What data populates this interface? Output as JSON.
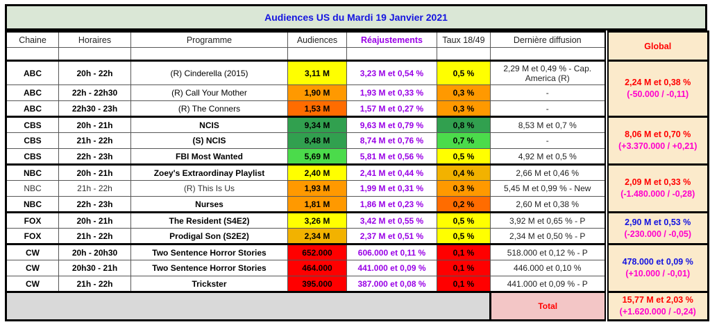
{
  "title": "Audiences US du Mardi 19 Janvier 2021",
  "columns": [
    "Chaine",
    "Horaires",
    "Programme",
    "Audiences",
    "Réajustements",
    "Taux 18/49",
    "Dernière diffusion",
    "Global"
  ],
  "palette": {
    "title_bg": "#DAE7D6",
    "title_text": "#1414E0",
    "cream": "#FBEACB",
    "pink": "#F3C6C6",
    "grey": "#D9D9D9",
    "yellow": "#FFFF00",
    "gold": "#F2B200",
    "orange": "#FF9900",
    "dark_orange": "#FF6C00",
    "red": "#FF0000",
    "green_dark": "#31A04F",
    "green_light": "#4BDB4B",
    "purple": "#9900E6",
    "magenta": "#FF00CC",
    "blue": "#1212E0"
  },
  "groups": [
    {
      "channel": "ABC",
      "global": {
        "line1": "2,24 M et 0,38 %",
        "line1_color": "red",
        "line2": "(-50.000 / -0,11)"
      },
      "rows": [
        {
          "time": "20h - 22h",
          "programme": "(R) Cinderella (2015)",
          "programme_bold": false,
          "audience": "3,11 M",
          "audience_color": "yellow",
          "reajust": "3,23 M et 0,54 %",
          "taux": "0,5 %",
          "taux_color": "yellow",
          "last": "2,29 M et 0,49 % - Cap. America (R)",
          "tall": true,
          "muted": false
        },
        {
          "time": "22h - 22h30",
          "programme": "(R) Call Your Mother",
          "programme_bold": false,
          "audience": "1,90 M",
          "audience_color": "orange",
          "reajust": "1,93 M et 0,33 %",
          "taux": "0,3 %",
          "taux_color": "orange",
          "last": "-",
          "tall": false,
          "muted": false
        },
        {
          "time": "22h30 - 23h",
          "programme": "(R) The Conners",
          "programme_bold": false,
          "audience": "1,53 M",
          "audience_color": "dark_orange",
          "reajust": "1,57 M et 0,27 %",
          "taux": "0,3 %",
          "taux_color": "orange",
          "last": "-",
          "tall": false,
          "muted": false
        }
      ]
    },
    {
      "channel": "CBS",
      "global": {
        "line1": "8,06 M et 0,70 %",
        "line1_color": "red",
        "line2": "(+3.370.000 / +0,21)"
      },
      "rows": [
        {
          "time": "20h - 21h",
          "programme": "NCIS",
          "programme_bold": true,
          "audience": "9,34 M",
          "audience_color": "green_dark",
          "reajust": "9,63 M et 0,79 %",
          "taux": "0,8 %",
          "taux_color": "green_dark",
          "last": "8,53 M et 0,7 %",
          "tall": false,
          "muted": false
        },
        {
          "time": "21h - 22h",
          "programme": "(S) NCIS",
          "programme_bold": true,
          "audience": "8,48 M",
          "audience_color": "green_dark",
          "reajust": "8,74 M et 0,76 %",
          "taux": "0,7 %",
          "taux_color": "green_light",
          "last": "-",
          "tall": false,
          "muted": false
        },
        {
          "time": "22h - 23h",
          "programme": "FBI Most Wanted",
          "programme_bold": true,
          "audience": "5,69 M",
          "audience_color": "green_light",
          "reajust": "5,81 M et 0,56 %",
          "taux": "0,5 %",
          "taux_color": "yellow",
          "last": "4,92 M et 0,5 %",
          "tall": false,
          "muted": false
        }
      ]
    },
    {
      "channel": "NBC",
      "global": {
        "line1": "2,09 M et 0,33 %",
        "line1_color": "red",
        "line2": "(-1.480.000 / -0,28)"
      },
      "rows": [
        {
          "time": "20h - 21h",
          "programme": "Zoey's Extraordinay Playlist",
          "programme_bold": true,
          "audience": "2,40 M",
          "audience_color": "yellow",
          "reajust": "2,41 M et 0,44 %",
          "taux": "0,4 %",
          "taux_color": "gold",
          "last": "2,66 M et 0,46 %",
          "tall": false,
          "muted": false
        },
        {
          "time": "21h - 22h",
          "programme": "(R) This Is Us",
          "programme_bold": false,
          "audience": "1,93 M",
          "audience_color": "orange",
          "reajust": "1,99 M et 0,31 %",
          "taux": "0,3 %",
          "taux_color": "orange",
          "last": "5,45 M et 0,99 % - New",
          "tall": false,
          "muted": true
        },
        {
          "time": "22h - 23h",
          "programme": "Nurses",
          "programme_bold": true,
          "audience": "1,81 M",
          "audience_color": "orange",
          "reajust": "1,86 M et 0,23 %",
          "taux": "0,2 %",
          "taux_color": "dark_orange",
          "last": "2,60 M et 0,38 %",
          "tall": false,
          "muted": false
        }
      ]
    },
    {
      "channel": "FOX",
      "global": {
        "line1": "2,90 M et 0,53 %",
        "line1_color": "blue",
        "line2": "(-230.000 / -0,05)"
      },
      "rows": [
        {
          "time": "20h - 21h",
          "programme": "The Resident (S4E2)",
          "programme_bold": true,
          "audience": "3,26 M",
          "audience_color": "yellow",
          "reajust": "3,42 M et 0,55 %",
          "taux": "0,5 %",
          "taux_color": "yellow",
          "last": "3,92 M et 0,65 % - P",
          "tall": false,
          "muted": false
        },
        {
          "time": "21h - 22h",
          "programme": "Prodigal Son (S2E2)",
          "programme_bold": true,
          "audience": "2,34 M",
          "audience_color": "gold",
          "reajust": "2,37 M et 0,51 %",
          "taux": "0,5 %",
          "taux_color": "yellow",
          "last": "2,34 M et 0,50 % - P",
          "tall": false,
          "muted": false
        }
      ]
    },
    {
      "channel": "CW",
      "global": {
        "line1": "478.000 et 0,09 %",
        "line1_color": "blue",
        "line2": "(+10.000 / -0,01)"
      },
      "rows": [
        {
          "time": "20h - 20h30",
          "programme": "Two Sentence Horror Stories",
          "programme_bold": true,
          "audience": "652.000",
          "audience_color": "red",
          "reajust": "606.000 et 0,11 %",
          "taux": "0,1 %",
          "taux_color": "red",
          "last": "518.000 et 0,12 % - P",
          "tall": false,
          "muted": false
        },
        {
          "time": "20h30 - 21h",
          "programme": "Two Sentence Horror Stories",
          "programme_bold": true,
          "audience": "464.000",
          "audience_color": "red",
          "reajust": "441.000 et 0,09 %",
          "taux": "0,1 %",
          "taux_color": "red",
          "last": "446.000 et 0,10 %",
          "tall": false,
          "muted": false
        },
        {
          "time": "21h - 22h",
          "programme": "Trickster",
          "programme_bold": true,
          "audience": "395.000",
          "audience_color": "red",
          "reajust": "387.000 et 0,08 %",
          "taux": "0,1 %",
          "taux_color": "red",
          "last": "441.000 et 0,09 % - P",
          "tall": false,
          "muted": false
        }
      ]
    }
  ],
  "total": {
    "label": "Total",
    "line1": "15,77 M et 2,03 %",
    "line1_color": "red",
    "line2": "(+1.620.000 / -0,24)"
  }
}
